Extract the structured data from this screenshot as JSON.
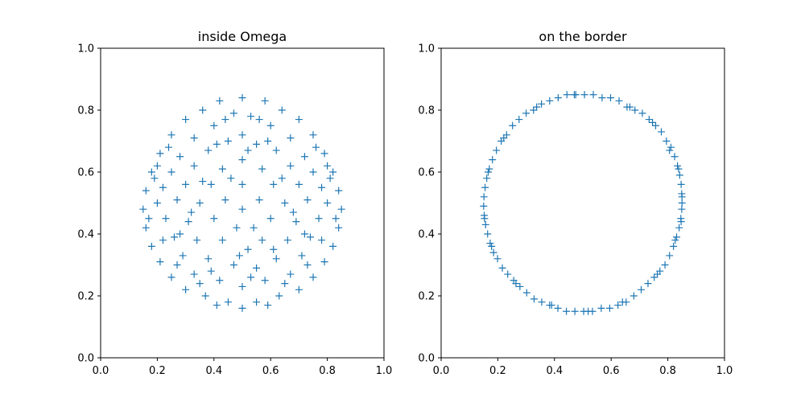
{
  "chart_data": [
    {
      "type": "scatter",
      "title": "inside Omega",
      "xlabel": "",
      "ylabel": "",
      "xlim": [
        0,
        1
      ],
      "ylim": [
        0,
        1
      ],
      "xticks": [
        "0.0",
        "0.2",
        "0.4",
        "0.6",
        "0.8",
        "1.0"
      ],
      "yticks": [
        "0.0",
        "0.2",
        "0.4",
        "0.6",
        "0.8",
        "1.0"
      ],
      "grid": false,
      "marker": "+",
      "color": "#1f77b4",
      "region": {
        "shape": "disk",
        "center": [
          0.5,
          0.5
        ],
        "radius": 0.35
      },
      "series": [
        {
          "values": [
            [
              0.5,
              0.84
            ],
            [
              0.42,
              0.83
            ],
            [
              0.58,
              0.83
            ],
            [
              0.36,
              0.8
            ],
            [
              0.64,
              0.8
            ],
            [
              0.3,
              0.77
            ],
            [
              0.7,
              0.77
            ],
            [
              0.47,
              0.79
            ],
            [
              0.53,
              0.78
            ],
            [
              0.25,
              0.72
            ],
            [
              0.75,
              0.72
            ],
            [
              0.4,
              0.75
            ],
            [
              0.6,
              0.75
            ],
            [
              0.33,
              0.71
            ],
            [
              0.67,
              0.71
            ],
            [
              0.21,
              0.66
            ],
            [
              0.79,
              0.66
            ],
            [
              0.5,
              0.72
            ],
            [
              0.45,
              0.7
            ],
            [
              0.55,
              0.69
            ],
            [
              0.28,
              0.65
            ],
            [
              0.72,
              0.65
            ],
            [
              0.38,
              0.67
            ],
            [
              0.62,
              0.67
            ],
            [
              0.18,
              0.6
            ],
            [
              0.82,
              0.6
            ],
            [
              0.5,
              0.64
            ],
            [
              0.25,
              0.6
            ],
            [
              0.75,
              0.6
            ],
            [
              0.33,
              0.62
            ],
            [
              0.67,
              0.62
            ],
            [
              0.43,
              0.61
            ],
            [
              0.57,
              0.61
            ],
            [
              0.16,
              0.54
            ],
            [
              0.84,
              0.54
            ],
            [
              0.22,
              0.55
            ],
            [
              0.78,
              0.55
            ],
            [
              0.3,
              0.56
            ],
            [
              0.7,
              0.56
            ],
            [
              0.39,
              0.56
            ],
            [
              0.61,
              0.56
            ],
            [
              0.5,
              0.56
            ],
            [
              0.15,
              0.48
            ],
            [
              0.85,
              0.48
            ],
            [
              0.2,
              0.5
            ],
            [
              0.8,
              0.5
            ],
            [
              0.27,
              0.51
            ],
            [
              0.73,
              0.51
            ],
            [
              0.35,
              0.5
            ],
            [
              0.65,
              0.5
            ],
            [
              0.44,
              0.51
            ],
            [
              0.56,
              0.51
            ],
            [
              0.5,
              0.48
            ],
            [
              0.16,
              0.42
            ],
            [
              0.84,
              0.42
            ],
            [
              0.23,
              0.45
            ],
            [
              0.77,
              0.45
            ],
            [
              0.31,
              0.44
            ],
            [
              0.69,
              0.44
            ],
            [
              0.4,
              0.45
            ],
            [
              0.6,
              0.45
            ],
            [
              0.48,
              0.42
            ],
            [
              0.18,
              0.36
            ],
            [
              0.82,
              0.36
            ],
            [
              0.26,
              0.39
            ],
            [
              0.74,
              0.39
            ],
            [
              0.34,
              0.38
            ],
            [
              0.66,
              0.38
            ],
            [
              0.43,
              0.38
            ],
            [
              0.57,
              0.38
            ],
            [
              0.52,
              0.35
            ],
            [
              0.21,
              0.31
            ],
            [
              0.79,
              0.31
            ],
            [
              0.29,
              0.33
            ],
            [
              0.71,
              0.33
            ],
            [
              0.38,
              0.32
            ],
            [
              0.62,
              0.32
            ],
            [
              0.47,
              0.3
            ],
            [
              0.55,
              0.29
            ],
            [
              0.25,
              0.26
            ],
            [
              0.75,
              0.26
            ],
            [
              0.33,
              0.27
            ],
            [
              0.67,
              0.27
            ],
            [
              0.42,
              0.25
            ],
            [
              0.58,
              0.25
            ],
            [
              0.5,
              0.23
            ],
            [
              0.3,
              0.22
            ],
            [
              0.7,
              0.22
            ],
            [
              0.37,
              0.2
            ],
            [
              0.63,
              0.2
            ],
            [
              0.45,
              0.18
            ],
            [
              0.55,
              0.18
            ],
            [
              0.5,
              0.16
            ],
            [
              0.41,
              0.17
            ],
            [
              0.59,
              0.17
            ],
            [
              0.35,
              0.24
            ],
            [
              0.65,
              0.24
            ],
            [
              0.19,
              0.58
            ],
            [
              0.81,
              0.58
            ],
            [
              0.17,
              0.45
            ],
            [
              0.83,
              0.45
            ],
            [
              0.24,
              0.68
            ],
            [
              0.76,
              0.68
            ],
            [
              0.44,
              0.77
            ],
            [
              0.56,
              0.77
            ],
            [
              0.52,
              0.67
            ],
            [
              0.46,
              0.58
            ],
            [
              0.54,
              0.42
            ],
            [
              0.32,
              0.47
            ],
            [
              0.68,
              0.47
            ],
            [
              0.28,
              0.4
            ],
            [
              0.72,
              0.4
            ],
            [
              0.36,
              0.57
            ],
            [
              0.64,
              0.58
            ],
            [
              0.41,
              0.69
            ],
            [
              0.59,
              0.7
            ],
            [
              0.49,
              0.33
            ],
            [
              0.61,
              0.35
            ],
            [
              0.39,
              0.28
            ],
            [
              0.53,
              0.26
            ],
            [
              0.27,
              0.3
            ],
            [
              0.73,
              0.3
            ],
            [
              0.22,
              0.38
            ],
            [
              0.78,
              0.38
            ],
            [
              0.2,
              0.62
            ],
            [
              0.8,
              0.62
            ]
          ]
        }
      ]
    },
    {
      "type": "scatter",
      "title": "on the border",
      "xlabel": "",
      "ylabel": "",
      "xlim": [
        0,
        1
      ],
      "ylim": [
        0,
        1
      ],
      "xticks": [
        "0.0",
        "0.2",
        "0.4",
        "0.6",
        "0.8",
        "1.0"
      ],
      "yticks": [
        "0.0",
        "0.2",
        "0.4",
        "0.6",
        "0.8",
        "1.0"
      ],
      "grid": false,
      "marker": "+",
      "color": "#1f77b4",
      "region": {
        "shape": "circle",
        "center": [
          0.5,
          0.5
        ],
        "radius": 0.35
      },
      "series": [
        {
          "values": [
            [
              0.85,
              0.5
            ],
            [
              0.849,
              0.53
            ],
            [
              0.847,
              0.56
            ],
            [
              0.842,
              0.59
            ],
            [
              0.834,
              0.62
            ],
            [
              0.824,
              0.65
            ],
            [
              0.811,
              0.68
            ],
            [
              0.795,
              0.7
            ],
            [
              0.777,
              0.73
            ],
            [
              0.757,
              0.75
            ],
            [
              0.734,
              0.77
            ],
            [
              0.71,
              0.79
            ],
            [
              0.684,
              0.8
            ],
            [
              0.656,
              0.81
            ],
            [
              0.628,
              0.83
            ],
            [
              0.598,
              0.84
            ],
            [
              0.568,
              0.84
            ],
            [
              0.537,
              0.85
            ],
            [
              0.506,
              0.85
            ],
            [
              0.475,
              0.85
            ],
            [
              0.444,
              0.85
            ],
            [
              0.413,
              0.84
            ],
            [
              0.383,
              0.83
            ],
            [
              0.354,
              0.82
            ],
            [
              0.326,
              0.8
            ],
            [
              0.3,
              0.79
            ],
            [
              0.275,
              0.77
            ],
            [
              0.252,
              0.75
            ],
            [
              0.231,
              0.72
            ],
            [
              0.212,
              0.7
            ],
            [
              0.195,
              0.67
            ],
            [
              0.181,
              0.64
            ],
            [
              0.17,
              0.61
            ],
            [
              0.161,
              0.58
            ],
            [
              0.155,
              0.55
            ],
            [
              0.151,
              0.52
            ],
            [
              0.15,
              0.49
            ],
            [
              0.152,
              0.46
            ],
            [
              0.157,
              0.43
            ],
            [
              0.164,
              0.4
            ],
            [
              0.173,
              0.37
            ],
            [
              0.185,
              0.34
            ],
            [
              0.199,
              0.32
            ],
            [
              0.216,
              0.29
            ],
            [
              0.235,
              0.27
            ],
            [
              0.256,
              0.25
            ],
            [
              0.278,
              0.23
            ],
            [
              0.302,
              0.21
            ],
            [
              0.328,
              0.19
            ],
            [
              0.355,
              0.18
            ],
            [
              0.383,
              0.17
            ],
            [
              0.412,
              0.16
            ],
            [
              0.442,
              0.15
            ],
            [
              0.472,
              0.15
            ],
            [
              0.503,
              0.15
            ],
            [
              0.534,
              0.15
            ],
            [
              0.565,
              0.16
            ],
            [
              0.595,
              0.16
            ],
            [
              0.624,
              0.17
            ],
            [
              0.653,
              0.18
            ],
            [
              0.68,
              0.2
            ],
            [
              0.706,
              0.22
            ],
            [
              0.73,
              0.24
            ],
            [
              0.752,
              0.26
            ],
            [
              0.772,
              0.28
            ],
            [
              0.79,
              0.3
            ],
            [
              0.806,
              0.33
            ],
            [
              0.82,
              0.36
            ],
            [
              0.831,
              0.39
            ],
            [
              0.84,
              0.42
            ],
            [
              0.846,
              0.45
            ],
            [
              0.849,
              0.48
            ],
            [
              0.847,
              0.44
            ],
            [
              0.838,
              0.61
            ],
            [
              0.806,
              0.67
            ],
            [
              0.746,
              0.76
            ],
            [
              0.666,
              0.81
            ],
            [
              0.47,
              0.85
            ],
            [
              0.337,
              0.81
            ],
            [
              0.221,
              0.71
            ],
            [
              0.166,
              0.6
            ],
            [
              0.153,
              0.45
            ],
            [
              0.178,
              0.36
            ],
            [
              0.264,
              0.24
            ],
            [
              0.39,
              0.17
            ],
            [
              0.519,
              0.15
            ],
            [
              0.64,
              0.18
            ],
            [
              0.763,
              0.27
            ],
            [
              0.826,
              0.38
            ],
            [
              0.85,
              0.52
            ]
          ]
        }
      ]
    }
  ]
}
